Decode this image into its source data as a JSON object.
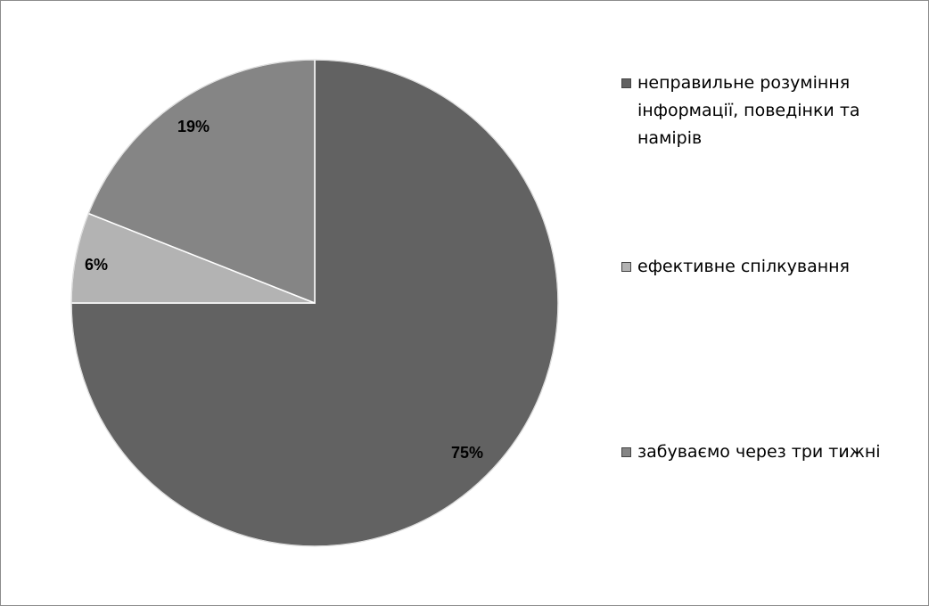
{
  "chart_data": {
    "type": "pie",
    "title": "",
    "slices": [
      {
        "label": "неправильне розуміння інформації, поведінки та намірів",
        "value": 75,
        "value_label": "75%",
        "color": "#626262"
      },
      {
        "label": "ефективне спілкування",
        "value": 6,
        "value_label": "6%",
        "color": "#b3b3b3"
      },
      {
        "label": "забуваємо через три тижні",
        "value": 19,
        "value_label": "19%",
        "color": "#858585"
      }
    ],
    "legend_placement": "right",
    "legend": [
      {
        "text": "неправильне розуміння інформації, поведінки та намірів",
        "color": "#626262"
      },
      {
        "text": "ефективне спілкування",
        "color": "#b3b3b3"
      },
      {
        "text": "забуваємо через три тижні",
        "color": "#858585"
      }
    ],
    "start_angle_deg": 0,
    "direction": "clockwise"
  }
}
